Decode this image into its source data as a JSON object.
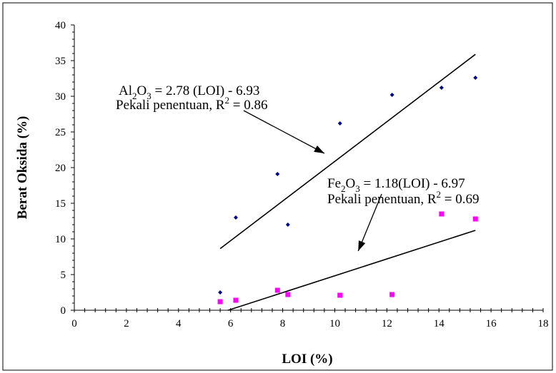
{
  "chart_data": {
    "type": "scatter",
    "title": "",
    "xlabel": "LOI (%)",
    "ylabel": "Berat Oksida (%)",
    "xlim": [
      0,
      18
    ],
    "ylim": [
      0,
      40
    ],
    "x_ticks": [
      "0",
      "2",
      "4",
      "6",
      "8",
      "10",
      "12",
      "14",
      "16",
      "18"
    ],
    "y_ticks": [
      "0",
      "5",
      "10",
      "15",
      "20",
      "25",
      "30",
      "35",
      "40"
    ],
    "grid": false,
    "legend": "none",
    "series": [
      {
        "color": "#00008b",
        "marker": "diamond",
        "points": [
          {
            "x": 5.6,
            "y": 2.5
          },
          {
            "x": 6.2,
            "y": 13.0
          },
          {
            "x": 7.8,
            "y": 19.1
          },
          {
            "x": 8.2,
            "y": 12.0
          },
          {
            "x": 10.2,
            "y": 26.2
          },
          {
            "x": 12.2,
            "y": 30.2
          },
          {
            "x": 14.1,
            "y": 31.2
          },
          {
            "x": 15.4,
            "y": 32.6
          }
        ],
        "trendline": {
          "x_start": 5.6,
          "x_end": 15.4,
          "slope": 2.78,
          "intercept": -6.93
        }
      },
      {
        "color": "#ff00ff",
        "marker": "square",
        "points": [
          {
            "x": 5.6,
            "y": 1.2
          },
          {
            "x": 6.2,
            "y": 1.4
          },
          {
            "x": 7.8,
            "y": 2.8
          },
          {
            "x": 8.2,
            "y": 2.2
          },
          {
            "x": 10.2,
            "y": 2.1
          },
          {
            "x": 12.2,
            "y": 2.2
          },
          {
            "x": 14.1,
            "y": 13.5
          },
          {
            "x": 15.4,
            "y": 12.8
          }
        ],
        "trendline": {
          "x_start": 5.906,
          "x_end": 15.4,
          "slope": 1.18,
          "intercept": -6.97
        }
      }
    ],
    "annotations": [
      {
        "eq_parts": [
          "Al",
          "2",
          "O",
          "3",
          " = 2.78 (LOI) - 6.93"
        ],
        "r2_parts": [
          "Pekali penentuan, R",
          "2",
          " =  0.86"
        ],
        "arrow_from": {
          "x": 6.5,
          "y": 28.0
        },
        "arrow_to": {
          "x": 9.6,
          "y": 22.0
        }
      },
      {
        "eq_parts": [
          "Fe",
          "2",
          "O",
          "3",
          " = 1.18(LOI) - 6.97"
        ],
        "r2_parts": [
          "Pekali penentuan, R",
          "2",
          " = 0.69"
        ],
        "arrow_from": {
          "x": 11.8,
          "y": 16.3
        },
        "arrow_to": {
          "x": 10.9,
          "y": 8.3
        }
      }
    ]
  }
}
